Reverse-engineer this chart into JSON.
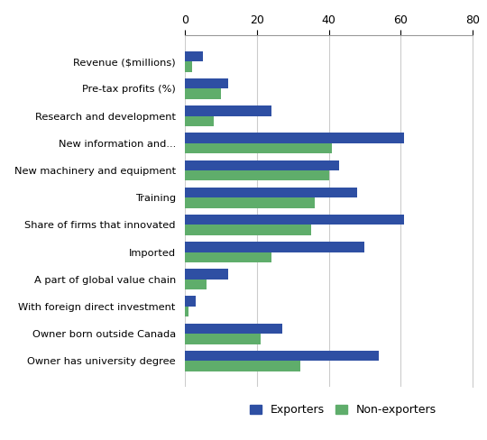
{
  "categories": [
    "Owner has university degree",
    "Owner born outside Canada",
    "With foreign direct investment",
    "A part of global value chain",
    "Imported",
    "Share of firms that innovated",
    "Training",
    "New machinery and equipment",
    "New information and...",
    "Research and development",
    "Pre-tax profits (%)",
    "Revenue ($millions)"
  ],
  "exporters": [
    54,
    27,
    3,
    12,
    50,
    61,
    48,
    43,
    61,
    24,
    12,
    5
  ],
  "non_exporters": [
    32,
    21,
    1,
    6,
    24,
    35,
    36,
    40,
    41,
    8,
    10,
    2
  ],
  "exporter_color": "#2E4FA3",
  "non_exporter_color": "#5FAD6B",
  "xlim": [
    0,
    80
  ],
  "xticks": [
    0,
    20,
    40,
    60,
    80
  ],
  "legend_exporters": "Exporters",
  "legend_non_exporters": "Non-exporters",
  "bar_height": 0.38,
  "background_color": "#ffffff",
  "grid_color": "#cccccc"
}
